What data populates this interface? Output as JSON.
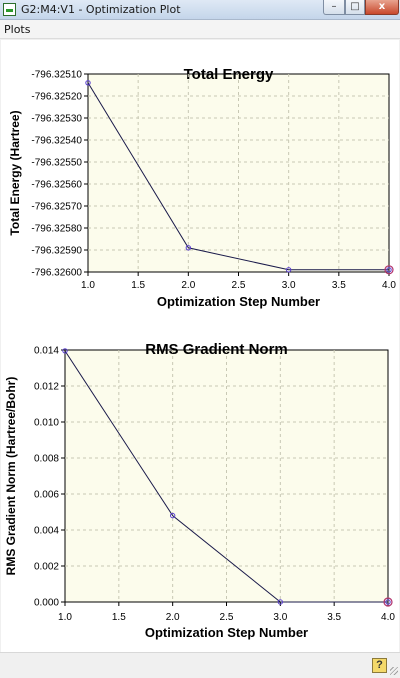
{
  "window": {
    "title": "G2:M4:V1 - Optimization Plot",
    "minimize_glyph": "–",
    "maximize_glyph": "□",
    "close_glyph": "x"
  },
  "menu": {
    "items": [
      "Plots"
    ]
  },
  "help": {
    "glyph": "?"
  },
  "icons": {
    "app": "molecule-app-icon",
    "help": "help-icon",
    "grip": "resize-grip-icon"
  },
  "colors": {
    "line": "#1a1a4a",
    "marker": "#5a3fd0",
    "plot_bg": "#fcfcec",
    "grid": "#c8c8b4"
  },
  "chart_data": [
    {
      "type": "line",
      "title": "Total Energy",
      "xlabel": "Optimization Step Number",
      "ylabel": "Total Energy (Hartree)",
      "x": [
        1.0,
        2.0,
        3.0,
        4.0
      ],
      "y": [
        -796.32514,
        -796.32589,
        -796.32599,
        -796.32599
      ],
      "xlim": [
        1.0,
        4.0
      ],
      "ylim": [
        -796.326,
        -796.3251
      ],
      "x_ticks": [
        "1.0",
        "1.5",
        "2.0",
        "2.5",
        "3.0",
        "3.5",
        "4.0"
      ],
      "y_ticks": [
        "-796.32510",
        "-796.32520",
        "-796.32530",
        "-796.32540",
        "-796.32550",
        "-796.32560",
        "-796.32570",
        "-796.32580",
        "-796.32590",
        "-796.32600"
      ],
      "grid": true,
      "legend": "none",
      "highlight_last_point": true
    },
    {
      "type": "line",
      "title": "RMS Gradient Norm",
      "xlabel": "Optimization Step Number",
      "ylabel": "RMS Gradient Norm (Hartree/Bohr)",
      "x": [
        1.0,
        2.0,
        3.0,
        4.0
      ],
      "y": [
        0.01395,
        0.0048,
        0.0,
        0.0
      ],
      "xlim": [
        1.0,
        4.0
      ],
      "ylim": [
        0.0,
        0.014
      ],
      "x_ticks": [
        "1.0",
        "1.5",
        "2.0",
        "2.5",
        "3.0",
        "3.5",
        "4.0"
      ],
      "y_ticks": [
        "0.000",
        "0.002",
        "0.004",
        "0.006",
        "0.008",
        "0.010",
        "0.012",
        "0.014"
      ],
      "grid": true,
      "legend": "none",
      "highlight_last_point": true
    }
  ]
}
